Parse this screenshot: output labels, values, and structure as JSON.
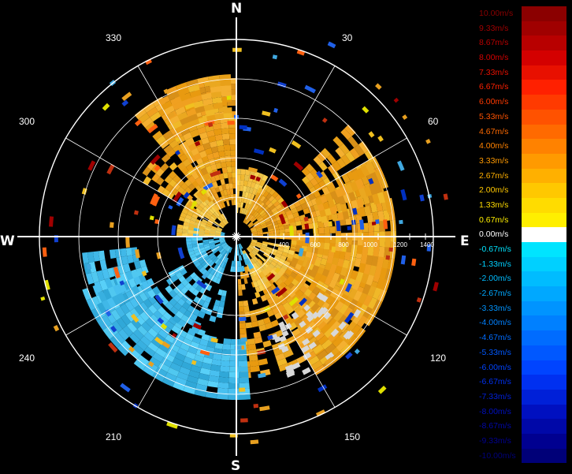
{
  "compass": {
    "north": "N",
    "south": "S",
    "east": "E",
    "west": "W"
  },
  "bearings": {
    "b30": "30",
    "b60": "60",
    "b120": "120",
    "b150": "150",
    "b210": "210",
    "b240": "240",
    "b300": "300",
    "b330": "330"
  },
  "range_labels": [
    "400",
    "600",
    "800",
    "1000",
    "1200",
    "1400"
  ],
  "legend": [
    {
      "label": "10.00m/s",
      "color": "#8b0000"
    },
    {
      "label": "9.33m/s",
      "color": "#a00000"
    },
    {
      "label": "8.67m/s",
      "color": "#b80000"
    },
    {
      "label": "8.00m/s",
      "color": "#d40000"
    },
    {
      "label": "7.33m/s",
      "color": "#e81000"
    },
    {
      "label": "6.67m/s",
      "color": "#ff2000"
    },
    {
      "label": "6.00m/s",
      "color": "#ff3a00"
    },
    {
      "label": "5.33m/s",
      "color": "#ff5200"
    },
    {
      "label": "4.67m/s",
      "color": "#ff6a00"
    },
    {
      "label": "4.00m/s",
      "color": "#ff8200"
    },
    {
      "label": "3.33m/s",
      "color": "#ff9a00"
    },
    {
      "label": "2.67m/s",
      "color": "#ffb000"
    },
    {
      "label": "2.00m/s",
      "color": "#ffc800"
    },
    {
      "label": "1.33m/s",
      "color": "#ffdc00"
    },
    {
      "label": "0.67m/s",
      "color": "#ffef00"
    },
    {
      "label": "0.00m/s",
      "color": "#ffffff"
    },
    {
      "label": "-0.67m/s",
      "color": "#00e4ff"
    },
    {
      "label": "-1.33m/s",
      "color": "#00d0ff"
    },
    {
      "label": "-2.00m/s",
      "color": "#00bcff"
    },
    {
      "label": "-2.67m/s",
      "color": "#00a8ff"
    },
    {
      "label": "-3.33m/s",
      "color": "#0094ff"
    },
    {
      "label": "-4.00m/s",
      "color": "#0080ff"
    },
    {
      "label": "-4.67m/s",
      "color": "#006cff"
    },
    {
      "label": "-5.33m/s",
      "color": "#0058ff"
    },
    {
      "label": "-6.00m/s",
      "color": "#0044ff"
    },
    {
      "label": "-6.67m/s",
      "color": "#0030f0"
    },
    {
      "label": "-7.33m/s",
      "color": "#0020d8"
    },
    {
      "label": "-8.00m/s",
      "color": "#0010c0"
    },
    {
      "label": "-8.67m/s",
      "color": "#0008a8"
    },
    {
      "label": "-9.33m/s",
      "color": "#000090"
    },
    {
      "label": "-10.00m/s",
      "color": "#000078"
    }
  ]
}
